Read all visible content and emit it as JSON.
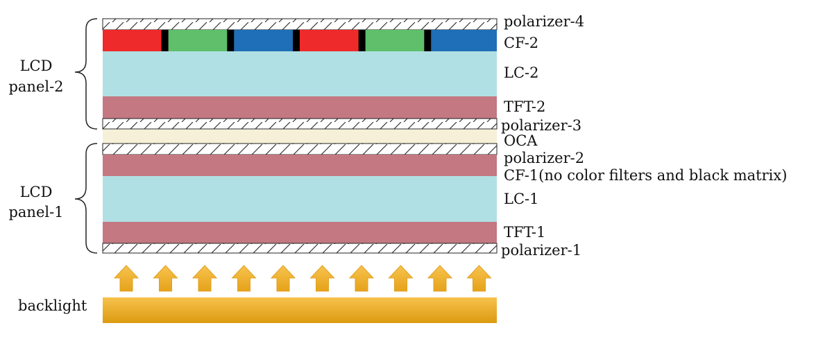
{
  "colors": {
    "cf_red": "#ee2a2a",
    "cf_green": "#5fbf6b",
    "cf_blue": "#1f6fb8",
    "black_matrix": "#000000",
    "lc": "#b0e0e3",
    "tft": "#c47881",
    "cf1": "#c47881",
    "oca": "#f7f0d8",
    "backlight_top": "#f7c04a",
    "backlight_bottom": "#d9960c",
    "arrow": "#f3b634",
    "polarizer_hatch": "#333333"
  },
  "layers": {
    "polarizer_4": "polarizer-4",
    "cf_2": "CF-2",
    "lc_2": "LC-2",
    "tft_2": "TFT-2",
    "polarizer_3": "polarizer-3",
    "oca": "OCA",
    "polarizer_2": "polarizer-2",
    "cf_1": "CF-1(no color filters and black matrix)",
    "lc_1": "LC-1",
    "tft_1": "TFT-1",
    "polarizer_1": "polarizer-1"
  },
  "panels": {
    "panel_2": [
      "LCD",
      "panel-2"
    ],
    "panel_1": [
      "LCD",
      "panel-1"
    ]
  },
  "cf_pattern": [
    "red",
    "green",
    "blue",
    "red",
    "green",
    "blue"
  ],
  "backlight": {
    "label": "backlight",
    "arrow_count": 10
  }
}
